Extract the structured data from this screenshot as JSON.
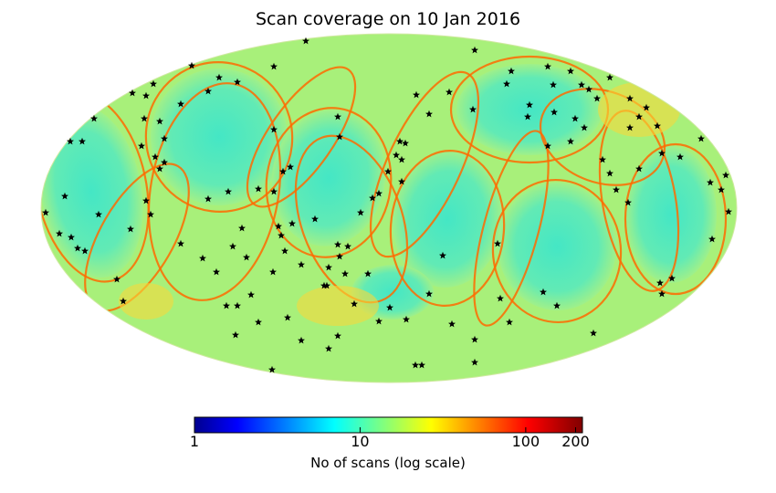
{
  "chart_data": {
    "type": "heatmap",
    "projection": "mollweide",
    "title": "Scan coverage on 10 Jan 2016",
    "colorbar": {
      "label": "No of scans (log scale)",
      "scale": "log",
      "range": [
        1,
        220
      ],
      "colormap": "jet",
      "ticks": [
        {
          "value": 1,
          "label": "1"
        },
        {
          "value": 10,
          "label": "10"
        },
        {
          "value": 100,
          "label": "100"
        },
        {
          "value": 200,
          "label": "200"
        }
      ]
    },
    "colors": {
      "background_fill": "#a8f07a",
      "low_coverage_fill": "#4ae8c8",
      "high_coverage_arc": "#ff6a00",
      "marker": "#000000"
    },
    "marker_symbol": "star"
  }
}
